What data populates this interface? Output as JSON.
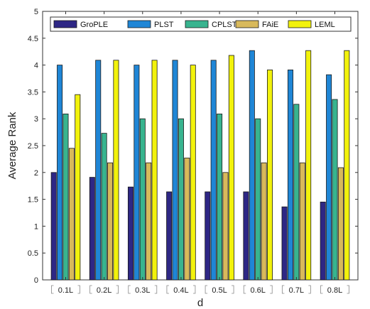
{
  "chart_data": {
    "type": "bar",
    "title": "",
    "xlabel": "d",
    "ylabel": "Average Rank",
    "ylim": [
      0,
      5
    ],
    "yticks": [
      "0",
      "0.5",
      "1",
      "1.5",
      "2",
      "2.5",
      "3",
      "3.5",
      "4",
      "4.5",
      "5"
    ],
    "categories": [
      "0.1L",
      "0.2L",
      "0.3L",
      "0.4L",
      "0.5L",
      "0.6L",
      "0.7L",
      "0.8L"
    ],
    "legend_position": "top",
    "grid": false,
    "series": [
      {
        "name": "GroPLE",
        "color": "#2e2785",
        "values": [
          2.0,
          1.91,
          1.73,
          1.64,
          1.64,
          1.64,
          1.36,
          1.45
        ]
      },
      {
        "name": "PLST",
        "color": "#1f86d6",
        "values": [
          4.0,
          4.09,
          4.0,
          4.09,
          4.09,
          4.27,
          3.91,
          3.82
        ]
      },
      {
        "name": "CPLST",
        "color": "#38b48f",
        "values": [
          3.09,
          2.73,
          3.0,
          3.0,
          3.09,
          3.0,
          3.27,
          3.36
        ]
      },
      {
        "name": "FAiE",
        "color": "#d8b95b",
        "values": [
          2.45,
          2.18,
          2.18,
          2.27,
          2.0,
          2.18,
          2.18,
          2.09
        ]
      },
      {
        "name": "LEML",
        "color": "#f2f20c",
        "values": [
          3.45,
          4.09,
          4.09,
          4.0,
          4.18,
          3.91,
          4.27,
          4.27
        ]
      }
    ]
  }
}
